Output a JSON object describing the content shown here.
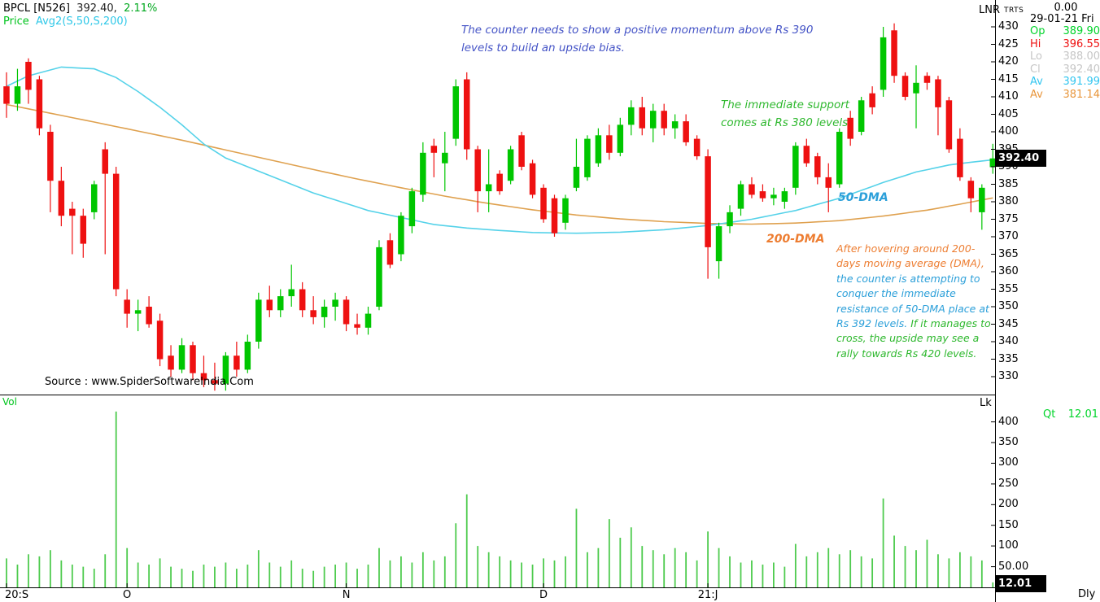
{
  "header": {
    "symbol": "BPCL [N526]",
    "last_price": "392.40,",
    "change_pct": "2.11%",
    "indicator_label": "Price",
    "indicator_value": "Avg2(S,50,S,200)",
    "colors": {
      "symbol": "#000000",
      "change": "#00a81e",
      "price_label": "#00c41d",
      "indicator": "#2fc8e8"
    }
  },
  "top_right": {
    "lnr_label": "LNR",
    "trts_label": "TRTS",
    "value_top": "0.00",
    "date": "29-01-21 Fri",
    "rows": [
      {
        "label": "Op",
        "value": "389.90",
        "color": "#00d42a"
      },
      {
        "label": "Hi",
        "value": "396.55",
        "color": "#ee1111"
      },
      {
        "label": "Lo",
        "value": "388.00",
        "color": "#c6c6c6"
      },
      {
        "label": "Cl",
        "value": "392.40",
        "color": "#c6c6c6"
      },
      {
        "label": "Av",
        "value": "391.99",
        "color": "#33c6f0"
      },
      {
        "label": "Av",
        "value": "381.14",
        "color": "#e8963c"
      }
    ]
  },
  "annotations": {
    "blue_note_lines": [
      "The counter needs to show a positive momentum above Rs 390",
      "levels to build an upside bias."
    ],
    "blue_note_color": "#4453c6",
    "green_note_lines": [
      "The immediate support",
      "comes at Rs 380 levels"
    ],
    "green_note_color": "#2eb82e",
    "dma50_label": "50-DMA",
    "dma50_color": "#2b9fd9",
    "dma200_label": "200-DMA",
    "dma200_color": "#ed7d31",
    "para_lines": [
      {
        "spans": [
          {
            "t": "After hovering around 200-",
            "c": "#ed7d31"
          }
        ]
      },
      {
        "spans": [
          {
            "t": "days moving average (DMA),",
            "c": "#ed7d31"
          }
        ]
      },
      {
        "spans": [
          {
            "t": "the counter is attempting to",
            "c": "#2b9fd9"
          }
        ]
      },
      {
        "spans": [
          {
            "t": "conquer the immediate",
            "c": "#2b9fd9"
          }
        ]
      },
      {
        "spans": [
          {
            "t": "resistance of 50-DMA place at",
            "c": "#2b9fd9"
          }
        ]
      },
      {
        "spans": [
          {
            "t": "Rs 392 levels. ",
            "c": "#2b9fd9"
          },
          {
            "t": "If it manages to",
            "c": "#2eb82e"
          }
        ]
      },
      {
        "spans": [
          {
            "t": "cross, the upside may see a",
            "c": "#2eb82e"
          }
        ]
      },
      {
        "spans": [
          {
            "t": "rally towards Rs 420 levels.",
            "c": "#2eb82e"
          }
        ]
      }
    ]
  },
  "source_text": "Source : www.SpiderSoftwareIndia.Com",
  "price_axis": {
    "ticks": [
      430,
      425,
      420,
      415,
      410,
      405,
      400,
      395,
      390,
      385,
      380,
      375,
      370,
      365,
      360,
      355,
      350,
      345,
      340,
      335,
      330
    ],
    "current_label": "392.40"
  },
  "volume_panel": {
    "panel_label": "Vol",
    "unit_label": "Lk",
    "qt_label": "Qt",
    "qt_value": "12.01",
    "ticks": [
      "400",
      "350",
      "300",
      "250",
      "200",
      "150",
      "100",
      "50.00"
    ],
    "current_label": "12.01",
    "period_label": "Dly"
  },
  "x_axis": {
    "labels": [
      {
        "index": 0,
        "label": "20:S"
      },
      {
        "index": 11,
        "label": "O"
      },
      {
        "index": 31,
        "label": "N"
      },
      {
        "index": 49,
        "label": "D"
      },
      {
        "index": 64,
        "label": "21:J"
      }
    ]
  },
  "chart_data": {
    "type": "candlestick+volume",
    "symbol": "BPCL",
    "period": "Daily, Sep 2020 - 29 Jan 2021",
    "price_range": [
      330,
      430
    ],
    "volume_range": [
      0,
      400
    ],
    "grid": false,
    "colors": {
      "up": "#00c600",
      "down": "#ee1111",
      "volume": "#4ecb4e",
      "ma50": "#55d2e9",
      "ma200": "#dfa14f"
    },
    "candles": [
      [
        413,
        417,
        404,
        408
      ],
      [
        408,
        418,
        406,
        413
      ],
      [
        420,
        421,
        408,
        412
      ],
      [
        415,
        416,
        399,
        401
      ],
      [
        400,
        402,
        377,
        386
      ],
      [
        386,
        390,
        373,
        376
      ],
      [
        378,
        380,
        365,
        376
      ],
      [
        376,
        378,
        364,
        368
      ],
      [
        377,
        386,
        375,
        385
      ],
      [
        395,
        397,
        365,
        388
      ],
      [
        388,
        390,
        353,
        355
      ],
      [
        352,
        355,
        344,
        348
      ],
      [
        348,
        352,
        343,
        349
      ],
      [
        350,
        353,
        344,
        345
      ],
      [
        346,
        348,
        333,
        335
      ],
      [
        336,
        339,
        330,
        332
      ],
      [
        332,
        341,
        331,
        339
      ],
      [
        339,
        340,
        329,
        331
      ],
      [
        331,
        336,
        327,
        329
      ],
      [
        329,
        334,
        326,
        328
      ],
      [
        328,
        337,
        326,
        336
      ],
      [
        336,
        340,
        330,
        332
      ],
      [
        332,
        342,
        331,
        340
      ],
      [
        340,
        354,
        338,
        352
      ],
      [
        352,
        356,
        347,
        349
      ],
      [
        349,
        355,
        347,
        353
      ],
      [
        353,
        362,
        350,
        355
      ],
      [
        355,
        357,
        347,
        349
      ],
      [
        349,
        353,
        345,
        347
      ],
      [
        347,
        352,
        344,
        350
      ],
      [
        350,
        354,
        346,
        352
      ],
      [
        352,
        353,
        343,
        345
      ],
      [
        345,
        348,
        342,
        344
      ],
      [
        344,
        350,
        342,
        348
      ],
      [
        350,
        369,
        349,
        367
      ],
      [
        369,
        371,
        361,
        362
      ],
      [
        365,
        377,
        363,
        376
      ],
      [
        373,
        384,
        371,
        383
      ],
      [
        382,
        397,
        380,
        394
      ],
      [
        396,
        398,
        387,
        394
      ],
      [
        391,
        400,
        383,
        394
      ],
      [
        398,
        415,
        396,
        413
      ],
      [
        415,
        417,
        392,
        395
      ],
      [
        395,
        396,
        377,
        383
      ],
      [
        383,
        395,
        377,
        385
      ],
      [
        388,
        389,
        382,
        383
      ],
      [
        386,
        396,
        385,
        395
      ],
      [
        399,
        400,
        389,
        390
      ],
      [
        391,
        392,
        381,
        382
      ],
      [
        384,
        385,
        374,
        375
      ],
      [
        381,
        382,
        370,
        371
      ],
      [
        374,
        382,
        372,
        381
      ],
      [
        384,
        398,
        383,
        390
      ],
      [
        387,
        399,
        386,
        398
      ],
      [
        391,
        401,
        390,
        399
      ],
      [
        399,
        402,
        392,
        394
      ],
      [
        394,
        404,
        393,
        402
      ],
      [
        402,
        409,
        399,
        407
      ],
      [
        407,
        410,
        399,
        401
      ],
      [
        401,
        408,
        397,
        406
      ],
      [
        406,
        408,
        399,
        401
      ],
      [
        401,
        405,
        398,
        403
      ],
      [
        403,
        405,
        396,
        397
      ],
      [
        398,
        399,
        392,
        393
      ],
      [
        393,
        395,
        358,
        367
      ],
      [
        363,
        374,
        358,
        373
      ],
      [
        373,
        379,
        371,
        377
      ],
      [
        378,
        386,
        376,
        385
      ],
      [
        385,
        387,
        381,
        382
      ],
      [
        383,
        385,
        380,
        381
      ],
      [
        381,
        384,
        379,
        382
      ],
      [
        380,
        384,
        378,
        383
      ],
      [
        384,
        397,
        382,
        396
      ],
      [
        396,
        398,
        390,
        391
      ],
      [
        393,
        394,
        385,
        387
      ],
      [
        387,
        391,
        377,
        384
      ],
      [
        385,
        401,
        384,
        400
      ],
      [
        404,
        406,
        396,
        398
      ],
      [
        400,
        410,
        399,
        409
      ],
      [
        411,
        413,
        405,
        407
      ],
      [
        412,
        430,
        410,
        427
      ],
      [
        429,
        431,
        414,
        416
      ],
      [
        416,
        417,
        409,
        410
      ],
      [
        411,
        419,
        401,
        414
      ],
      [
        416,
        417,
        412,
        414
      ],
      [
        415,
        416,
        399,
        407
      ],
      [
        409,
        410,
        394,
        395
      ],
      [
        398,
        401,
        386,
        387
      ],
      [
        386,
        387,
        377,
        381
      ],
      [
        377,
        385,
        372,
        384
      ],
      [
        389.9,
        396.55,
        388,
        392.4
      ]
    ],
    "volumes": [
      70,
      55,
      80,
      75,
      90,
      65,
      55,
      50,
      45,
      80,
      425,
      95,
      60,
      55,
      70,
      50,
      45,
      40,
      55,
      50,
      60,
      45,
      55,
      90,
      60,
      50,
      65,
      45,
      40,
      50,
      55,
      60,
      45,
      55,
      95,
      65,
      75,
      60,
      85,
      65,
      75,
      155,
      225,
      100,
      85,
      75,
      65,
      60,
      55,
      70,
      65,
      75,
      190,
      85,
      95,
      165,
      120,
      145,
      100,
      90,
      80,
      95,
      85,
      65,
      135,
      95,
      75,
      60,
      65,
      55,
      60,
      50,
      105,
      75,
      85,
      95,
      80,
      90,
      75,
      70,
      215,
      125,
      100,
      90,
      115,
      80,
      70,
      85,
      75,
      65,
      12
    ],
    "ma50_points": [
      [
        0,
        413
      ],
      [
        2,
        416
      ],
      [
        5,
        418.5
      ],
      [
        8,
        418
      ],
      [
        10,
        415.5
      ],
      [
        12,
        411.5
      ],
      [
        14,
        407
      ],
      [
        16,
        402
      ],
      [
        18,
        396.5
      ],
      [
        20,
        392.5
      ],
      [
        22,
        390
      ],
      [
        24,
        387.5
      ],
      [
        26,
        385
      ],
      [
        28,
        382.5
      ],
      [
        30,
        380.5
      ],
      [
        33,
        377.5
      ],
      [
        36,
        375.5
      ],
      [
        39,
        373.5
      ],
      [
        42,
        372.5
      ],
      [
        45,
        371.8
      ],
      [
        48,
        371.2
      ],
      [
        52,
        371
      ],
      [
        56,
        371.3
      ],
      [
        60,
        372
      ],
      [
        64,
        373.2
      ],
      [
        68,
        375
      ],
      [
        72,
        377.5
      ],
      [
        76,
        381
      ],
      [
        80,
        385.5
      ],
      [
        83,
        388.5
      ],
      [
        86,
        390.5
      ],
      [
        88,
        391.3
      ],
      [
        90,
        392
      ]
    ],
    "ma200_points": [
      [
        0,
        407.8
      ],
      [
        4,
        405.3
      ],
      [
        8,
        402.8
      ],
      [
        12,
        400.2
      ],
      [
        16,
        397.6
      ],
      [
        20,
        394.8
      ],
      [
        24,
        392
      ],
      [
        28,
        389.2
      ],
      [
        32,
        386.5
      ],
      [
        36,
        384
      ],
      [
        40,
        381.6
      ],
      [
        44,
        379.5
      ],
      [
        48,
        377.7
      ],
      [
        52,
        376.2
      ],
      [
        56,
        375.1
      ],
      [
        60,
        374.3
      ],
      [
        64,
        373.8
      ],
      [
        68,
        373.6
      ],
      [
        72,
        373.9
      ],
      [
        76,
        374.6
      ],
      [
        80,
        375.9
      ],
      [
        84,
        377.6
      ],
      [
        87,
        379.3
      ],
      [
        90,
        381.1
      ]
    ]
  }
}
